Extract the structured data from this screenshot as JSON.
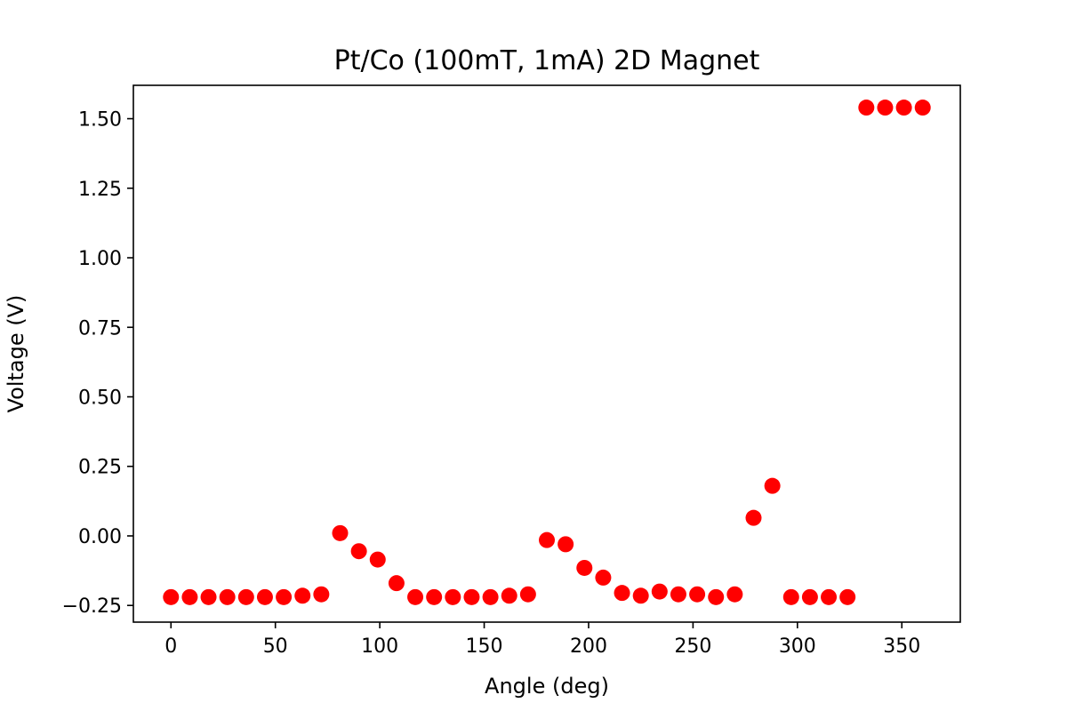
{
  "chart_data": {
    "type": "scatter",
    "title": "Pt/Co (100mT, 1mA) 2D Magnet",
    "xlabel": "Angle (deg)",
    "ylabel": "Voltage (V)",
    "xlim": [
      -18,
      378
    ],
    "ylim": [
      -0.31,
      1.62
    ],
    "xticks": [
      0,
      50,
      100,
      150,
      200,
      250,
      300,
      350
    ],
    "xtick_labels": [
      "0",
      "50",
      "100",
      "150",
      "200",
      "250",
      "300",
      "350"
    ],
    "yticks": [
      -0.25,
      0.0,
      0.25,
      0.5,
      0.75,
      1.0,
      1.25,
      1.5
    ],
    "ytick_labels": [
      "−0.25",
      "0.00",
      "0.25",
      "0.50",
      "0.75",
      "1.00",
      "1.25",
      "1.50"
    ],
    "grid": false,
    "marker_color": "#ff0000",
    "series": [
      {
        "x": [
          0,
          9,
          18,
          27,
          36,
          45,
          54,
          63,
          72,
          81,
          90,
          99,
          108,
          117,
          126,
          135,
          144,
          153,
          162,
          171,
          180,
          189,
          198,
          207,
          216,
          225,
          234,
          243,
          252,
          261,
          270,
          279,
          288,
          297,
          306,
          315,
          324,
          333,
          342,
          351,
          360
        ],
        "y": [
          -0.22,
          -0.22,
          -0.22,
          -0.22,
          -0.22,
          -0.22,
          -0.22,
          -0.215,
          -0.21,
          0.01,
          -0.055,
          -0.085,
          -0.17,
          -0.22,
          -0.22,
          -0.22,
          -0.22,
          -0.22,
          -0.215,
          -0.21,
          -0.015,
          -0.03,
          -0.115,
          -0.15,
          -0.205,
          -0.215,
          -0.2,
          -0.21,
          -0.21,
          -0.22,
          -0.21,
          0.065,
          0.18,
          -0.22,
          -0.22,
          -0.22,
          -0.22,
          1.54,
          1.54,
          1.54,
          1.54
        ]
      }
    ]
  }
}
